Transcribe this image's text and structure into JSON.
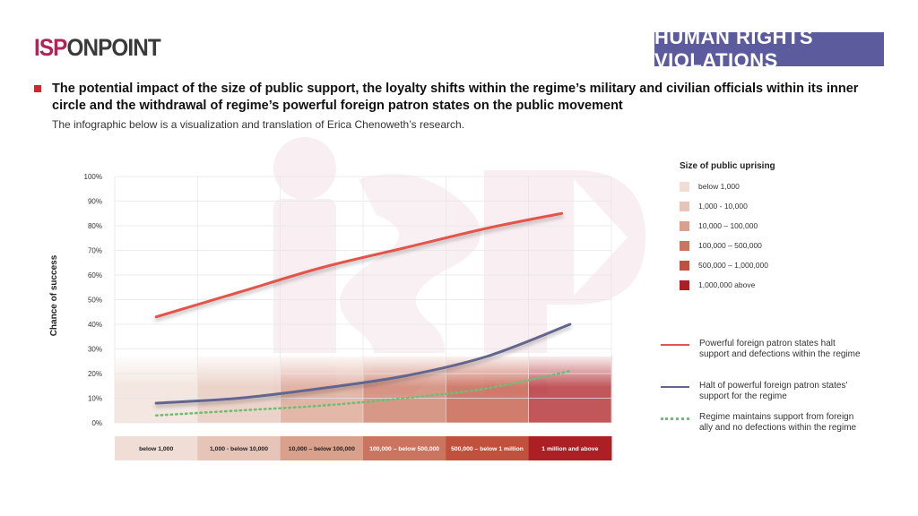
{
  "header": {
    "logo_part1": "ISP",
    "logo_part2": "ONPOINT",
    "badge": "HUMAN RIGHTS VIOLATIONS",
    "headline": "The potential impact of the size of public support, the loyalty shifts within the regime’s military and civilian officials within its inner circle and the withdrawal of regime’s powerful foreign patron states on the public movement",
    "subline": "The infographic below is a visualization and translation of Erica Chenoweth’s research."
  },
  "colors": {
    "accent_red": "#d8232a",
    "badge_bg": "#5b5b9e",
    "logo_isp": "#b0245a"
  },
  "legend": {
    "size_title": "Size of public uprising",
    "sizes": [
      {
        "label": "below 1,000",
        "color": "#f0ddd6"
      },
      {
        "label": "1,000 - 10,000",
        "color": "#e6c4b8"
      },
      {
        "label": "10,000 – 100,000",
        "color": "#d9a08c"
      },
      {
        "label": "100,000 – 500,000",
        "color": "#cb7560"
      },
      {
        "label": "500,000 – 1,000,000",
        "color": "#c0513c"
      },
      {
        "label": "1,000,000 above",
        "color": "#ac1f24"
      }
    ],
    "lines": [
      {
        "label": "Powerful foreign patron states halt support and defections within the regime",
        "color": "#e4554a",
        "style": "solid"
      },
      {
        "label": "Halt of powerful foreign patron states' support for the regime",
        "color": "#63658f",
        "style": "solid"
      },
      {
        "label": "Regime maintains support from foreign ally and no defections within the regime",
        "color": "#6cbf74",
        "style": "dotted"
      }
    ]
  },
  "chart_data": {
    "type": "line",
    "ylabel": "Chance of success",
    "xlabel": "",
    "ylim": [
      0,
      100
    ],
    "yticks": [
      "0%",
      "10%",
      "20%",
      "30%",
      "40%",
      "50%",
      "60%",
      "70%",
      "80%",
      "90%",
      "100%"
    ],
    "categories": [
      "below 1,000",
      "1,000 - below 10,000",
      "10,000 – below 100,000",
      "100,000 – below 500,000",
      "500,000 – below 1 million",
      "1 million and above"
    ],
    "category_colors": [
      "#f0ddd6",
      "#e6c4b8",
      "#d9a08c",
      "#cb7560",
      "#c0513c",
      "#ac1f24"
    ],
    "grid": true,
    "series": [
      {
        "name": "Powerful foreign patron states halt support and defections within the regime",
        "color": "#e4554a",
        "style": "solid",
        "x": [
          0.5,
          1.5,
          2.5,
          3.5,
          4.5,
          5.4
        ],
        "values": [
          43,
          53,
          63,
          71,
          79,
          85
        ]
      },
      {
        "name": "Halt of powerful foreign patron states' support for the regime",
        "color": "#63658f",
        "style": "solid",
        "x": [
          0.5,
          1.5,
          2.5,
          3.5,
          4.5,
          5.5
        ],
        "values": [
          8,
          10,
          14,
          19,
          27,
          40
        ]
      },
      {
        "name": "Regime maintains support from foreign ally and no defections within the regime",
        "color": "#6cbf74",
        "style": "dotted",
        "x": [
          0.5,
          1.5,
          2.5,
          3.5,
          4.5,
          5.5
        ],
        "values": [
          3,
          5,
          7,
          10,
          14,
          21
        ]
      }
    ]
  }
}
